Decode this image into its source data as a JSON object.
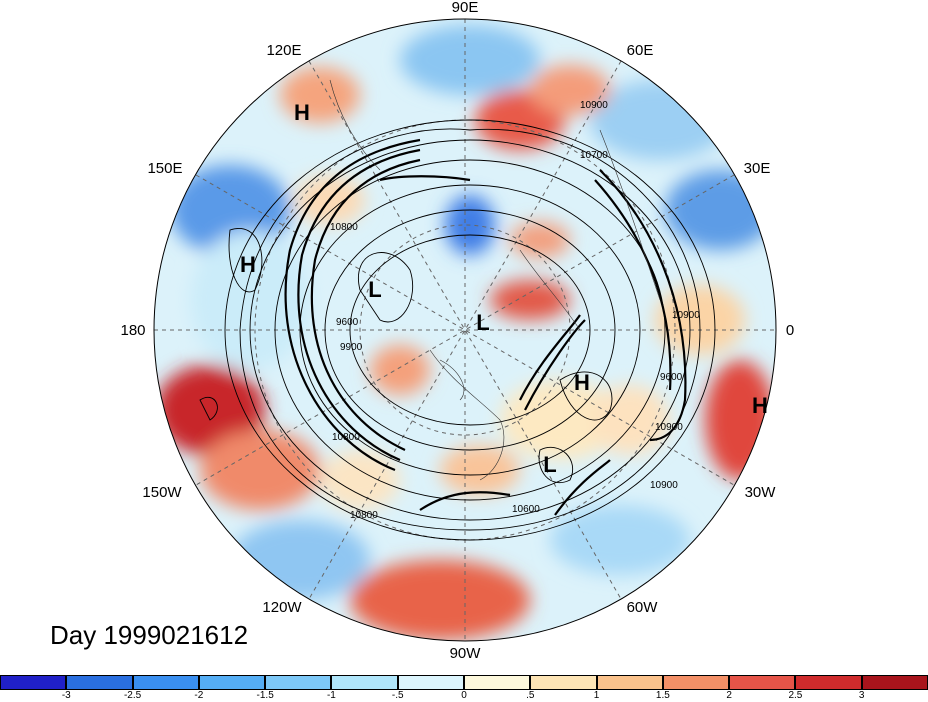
{
  "title_label": "Day 1999021612",
  "longitude_labels": [
    {
      "text": "90E",
      "pos": "top"
    },
    {
      "text": "60E",
      "pos": "upper-right"
    },
    {
      "text": "30E",
      "pos": "right-upper"
    },
    {
      "text": "0",
      "pos": "right"
    },
    {
      "text": "30W",
      "pos": "right-lower"
    },
    {
      "text": "60W",
      "pos": "lower-right"
    },
    {
      "text": "90W",
      "pos": "bottom"
    },
    {
      "text": "120W",
      "pos": "lower-left"
    },
    {
      "text": "150W",
      "pos": "left-lower"
    },
    {
      "text": "180",
      "pos": "left"
    },
    {
      "text": "150E",
      "pos": "left-upper"
    },
    {
      "text": "120E",
      "pos": "upper-left"
    }
  ],
  "pressure_centers": [
    {
      "type": "H"
    },
    {
      "type": "H"
    },
    {
      "type": "L"
    },
    {
      "type": "L"
    },
    {
      "type": "H"
    },
    {
      "type": "H"
    },
    {
      "type": "L"
    }
  ],
  "contour_labels": [
    "10900",
    "10700",
    "10800",
    "9600",
    "9900",
    "10800",
    "10600",
    "10900",
    "10800",
    "10900",
    "9600",
    "10900"
  ],
  "colorbar": {
    "colors": [
      "#2020c8",
      "#2a6fe0",
      "#3a8ff0",
      "#55aef5",
      "#7dc8f7",
      "#b0e6fb",
      "#dcf5fd",
      "#fdf8dc",
      "#fde4b5",
      "#fac28c",
      "#f39067",
      "#e65448",
      "#cf2b2c",
      "#a8141c"
    ],
    "ticks": [
      "-3",
      "-2.5",
      "-2",
      "-1.5",
      "-1",
      "-.5",
      "0",
      ".5",
      "1",
      "1.5",
      "2",
      "2.5",
      "3"
    ]
  }
}
